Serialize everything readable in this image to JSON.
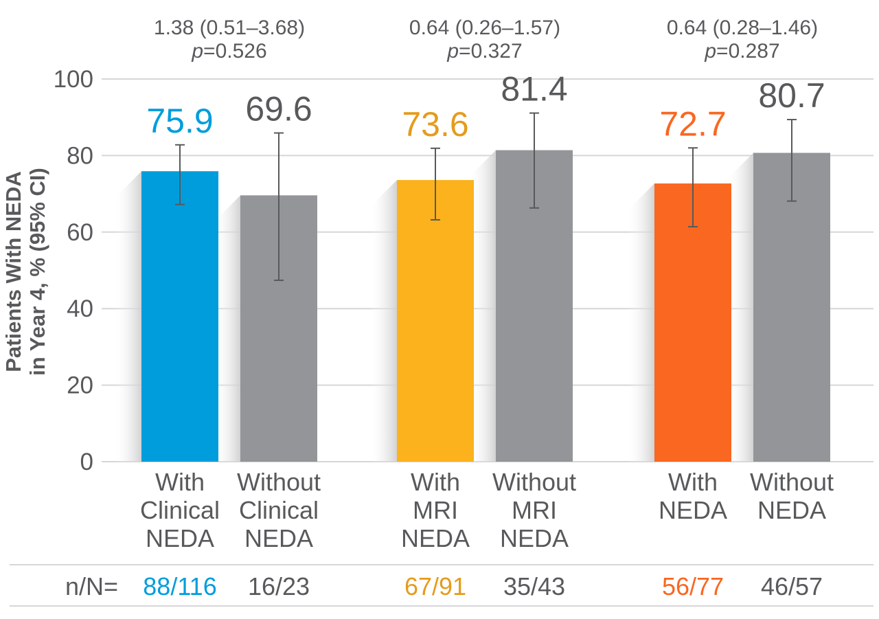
{
  "chart_data": {
    "type": "bar",
    "ylabel_lines": [
      "Patients With NEDA",
      "in Year 4, % (95% CI)"
    ],
    "ylim": [
      0,
      100
    ],
    "yticks": [
      0,
      20,
      40,
      60,
      80,
      100
    ],
    "grid": true,
    "groups": [
      {
        "stat_line1": "1.38 (0.51–3.68)",
        "p_label": "p",
        "p_value": "=0.526",
        "bars": [
          {
            "label_lines": [
              "With",
              "Clinical",
              "NEDA"
            ],
            "value": 75.9,
            "ci": [
              67.2,
              82.8
            ],
            "color": "#009ddc",
            "n": "88/116"
          },
          {
            "label_lines": [
              "Without",
              "Clinical",
              "NEDA"
            ],
            "value": 69.6,
            "ci": [
              47.4,
              85.9
            ],
            "color": "#939598",
            "n": "16/23"
          }
        ]
      },
      {
        "stat_line1": "0.64 (0.26–1.57)",
        "p_label": "p",
        "p_value": "=0.327",
        "bars": [
          {
            "label_lines": [
              "With",
              "MRI",
              "NEDA"
            ],
            "value": 73.6,
            "ci": [
              63.2,
              81.9
            ],
            "color": "#fbb21c",
            "n": "67/91"
          },
          {
            "label_lines": [
              "Without",
              "MRI",
              "NEDA"
            ],
            "value": 81.4,
            "ci": [
              66.3,
              91.1
            ],
            "color": "#939598",
            "n": "35/43"
          }
        ]
      },
      {
        "stat_line1": "0.64 (0.28–1.46)",
        "p_label": "p",
        "p_value": "=0.287",
        "bars": [
          {
            "label_lines": [
              "With",
              "NEDA"
            ],
            "value": 72.7,
            "ci": [
              61.4,
              82.0
            ],
            "color": "#f96720",
            "n": "56/77"
          },
          {
            "label_lines": [
              "Without",
              "NEDA"
            ],
            "value": 80.7,
            "ci": [
              68.1,
              89.4
            ],
            "color": "#939598",
            "n": "46/57"
          }
        ]
      }
    ],
    "n_prefix": "n/N=",
    "value_colors": [
      "#009ddc",
      "#58595b",
      "#e59b1c",
      "#58595b",
      "#f96720",
      "#58595b"
    ],
    "n_colors": [
      "#009ddc",
      "#58595b",
      "#e59b1c",
      "#58595b",
      "#f96720",
      "#58595b"
    ]
  }
}
